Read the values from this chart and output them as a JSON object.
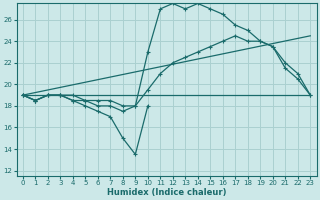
{
  "background_color": "#cce8e8",
  "grid_color": "#aad0d0",
  "line_color": "#1a6b6b",
  "xlabel": "Humidex (Indice chaleur)",
  "xlim": [
    -0.5,
    23.5
  ],
  "ylim": [
    11.5,
    27.5
  ],
  "yticks": [
    12,
    14,
    16,
    18,
    20,
    22,
    24,
    26
  ],
  "xticks": [
    0,
    1,
    2,
    3,
    4,
    5,
    6,
    7,
    8,
    9,
    10,
    11,
    12,
    13,
    14,
    15,
    16,
    17,
    18,
    19,
    20,
    21,
    22,
    23
  ],
  "line1_x": [
    0,
    1,
    2,
    3,
    4,
    5,
    6,
    7,
    8,
    9,
    10,
    11,
    12,
    13,
    14,
    15,
    16,
    17,
    18,
    19,
    20,
    21,
    22,
    23
  ],
  "line1_y": [
    19,
    18.5,
    19,
    19,
    18.5,
    18.5,
    18,
    18,
    17.5,
    18,
    23,
    27,
    27.5,
    27,
    27.5,
    27,
    26.5,
    25.5,
    25,
    24,
    23.5,
    22,
    21,
    19
  ],
  "line2_x": [
    0,
    1,
    2,
    3,
    4,
    5,
    6,
    7,
    8,
    9,
    10,
    11,
    12,
    13,
    14,
    15,
    16,
    17,
    18,
    19,
    20,
    21,
    22,
    23
  ],
  "line2_y": [
    19,
    18.5,
    19,
    19,
    19,
    18.5,
    18.5,
    18.5,
    18,
    18,
    19.5,
    21,
    22,
    22.5,
    23,
    23.5,
    24,
    24.5,
    24,
    24,
    23.5,
    21.5,
    20.5,
    19
  ],
  "line3_x": [
    0,
    23
  ],
  "line3_y": [
    19,
    19
  ],
  "line4_x": [
    0,
    23
  ],
  "line4_y": [
    19,
    24.5
  ],
  "line5_x": [
    0,
    1,
    2,
    3,
    4,
    5,
    6,
    7,
    8,
    9,
    10
  ],
  "line5_y": [
    19,
    18.5,
    19,
    19,
    18.5,
    18,
    17.5,
    17,
    15,
    13.5,
    18
  ]
}
